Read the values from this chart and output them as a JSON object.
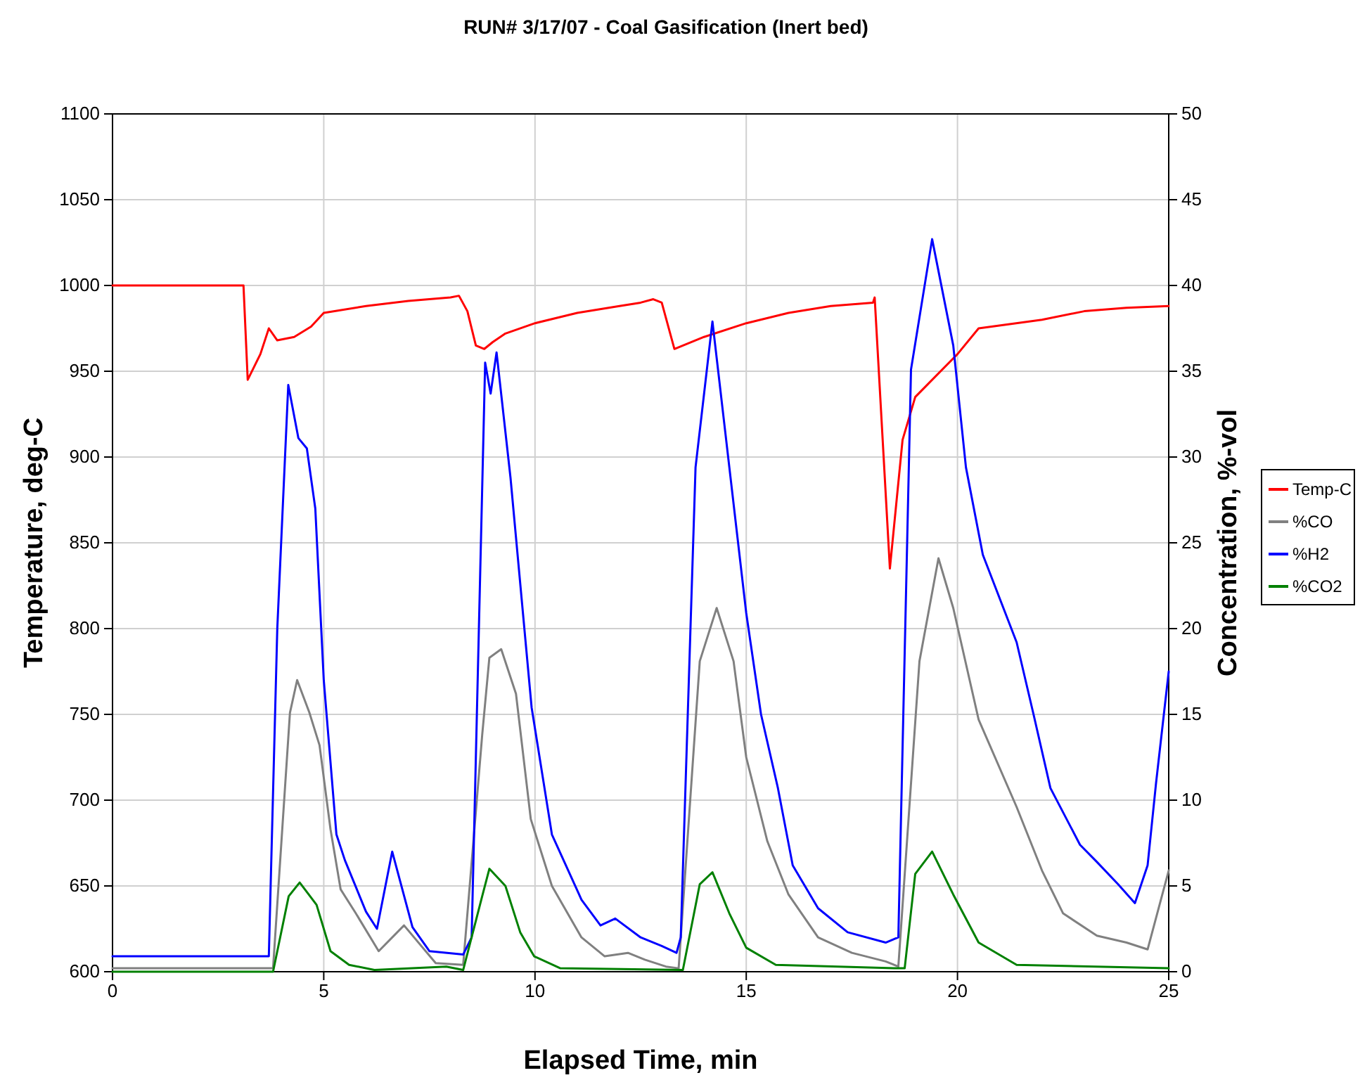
{
  "chart_data": {
    "type": "line",
    "title": "RUN# 3/17/07 - Coal Gasification (Inert bed)",
    "xlabel": "Elapsed Time, min",
    "ylabel": "Temperature, deg-C",
    "y2label": "Concentration, %-vol",
    "xlim": [
      0,
      25
    ],
    "xticks": [
      0,
      5,
      10,
      15,
      20,
      25
    ],
    "ylim": [
      600,
      1100
    ],
    "yticks": [
      600,
      650,
      700,
      750,
      800,
      850,
      900,
      950,
      1000,
      1050,
      1100
    ],
    "y2lim": [
      0,
      50
    ],
    "y2ticks": [
      0,
      5,
      10,
      15,
      20,
      25,
      30,
      35,
      40,
      45,
      50
    ],
    "grid": true,
    "legend": "right",
    "line_style": "solid",
    "marker": "none",
    "series": [
      {
        "name": "Temp-C",
        "color": "#ff0000",
        "x": [
          0,
          3.1,
          3.2,
          3.5,
          3.7,
          3.9,
          4.3,
          4.7,
          5,
          6,
          7,
          8,
          8.2,
          8.4,
          8.6,
          8.8,
          9,
          9.3,
          10,
          11,
          12,
          12.5,
          12.8,
          13,
          13.3,
          14,
          15,
          16,
          17,
          18,
          18.04,
          18.4,
          18.7,
          19,
          20,
          20.5,
          22,
          23,
          24,
          25
        ],
        "values": [
          1000,
          1000,
          945,
          960,
          975,
          968,
          970,
          976,
          984,
          988,
          991,
          993,
          994,
          985,
          965,
          963,
          967,
          972,
          978,
          984,
          988,
          990,
          992,
          990,
          963,
          970,
          978,
          984,
          988,
          990,
          993,
          835,
          910,
          935,
          960,
          975,
          980,
          985,
          987,
          988
        ]
      },
      {
        "name": "%CO",
        "color": "#808080",
        "axis": "y2",
        "x": [
          0,
          3.8,
          4.2,
          4.37,
          4.66,
          4.9,
          5.16,
          5.4,
          5.76,
          6.3,
          6.9,
          7.65,
          8.3,
          8.75,
          8.92,
          9.2,
          9.55,
          9.9,
          10.4,
          11.1,
          11.65,
          12.2,
          12.6,
          13.1,
          13.4,
          13.9,
          14.3,
          14.7,
          15,
          15.5,
          16,
          16.7,
          17.5,
          18.3,
          18.6,
          19.1,
          19.55,
          19.9,
          20.5,
          21.4,
          22,
          22.5,
          23.3,
          24,
          24.5,
          25
        ],
        "values": [
          0.2,
          0.2,
          15.1,
          17,
          15.1,
          13.2,
          8.3,
          4.8,
          3.4,
          1.2,
          2.7,
          0.5,
          0.4,
          13.8,
          18.3,
          18.8,
          16.2,
          8.9,
          5,
          2,
          0.9,
          1.1,
          0.7,
          0.3,
          0.2,
          18.1,
          21.2,
          18.1,
          12.5,
          7.6,
          4.5,
          2,
          1.1,
          0.6,
          0.3,
          18.1,
          24.1,
          21.2,
          14.7,
          9.6,
          5.9,
          3.4,
          2.1,
          1.7,
          1.3,
          5.9
        ]
      },
      {
        "name": "%H2",
        "color": "#0000ff",
        "axis": "y2",
        "x": [
          0,
          3.7,
          3.9,
          4.16,
          4.4,
          4.6,
          4.8,
          5,
          5.3,
          5.5,
          6,
          6.26,
          6.62,
          7.1,
          7.5,
          8.3,
          8.5,
          8.82,
          8.95,
          9.09,
          9.42,
          9.92,
          10.4,
          11.1,
          11.55,
          11.9,
          12.5,
          13,
          13.35,
          13.45,
          13.8,
          14.2,
          14.6,
          15,
          15.35,
          15.75,
          16.1,
          16.7,
          17.4,
          18.3,
          18.6,
          18.9,
          19.4,
          19.9,
          20.2,
          20.6,
          21.4,
          21.8,
          22.2,
          22.9,
          23.3,
          23.8,
          24.2,
          24.5,
          24.7,
          25
        ],
        "values": [
          0.9,
          0.9,
          20,
          34.2,
          31.1,
          30.5,
          27,
          17,
          8,
          6.5,
          3.5,
          2.5,
          7,
          2.6,
          1.2,
          1,
          2,
          35.5,
          33.7,
          36.1,
          28.8,
          15.4,
          8,
          4.2,
          2.7,
          3.1,
          2,
          1.5,
          1.1,
          2,
          29.4,
          37.9,
          29.4,
          20.9,
          15,
          10.7,
          6.2,
          3.7,
          2.3,
          1.7,
          2,
          35.1,
          42.7,
          36.5,
          29.4,
          24.3,
          19.2,
          15,
          10.7,
          7.4,
          6.4,
          5.1,
          4,
          6.2,
          11,
          17.5
        ]
      },
      {
        "name": "%CO2",
        "color": "#008000",
        "axis": "y2",
        "x": [
          0,
          3.8,
          4.17,
          4.43,
          4.83,
          5.16,
          5.6,
          6.2,
          7.9,
          8.3,
          8.75,
          8.92,
          9.3,
          9.65,
          9.98,
          10.6,
          13.5,
          13.9,
          14.2,
          14.6,
          15,
          15.7,
          18.5,
          18.75,
          19,
          19.4,
          19.9,
          20.5,
          21.4,
          25
        ],
        "values": [
          0,
          0,
          4.4,
          5.2,
          3.9,
          1.2,
          0.4,
          0.1,
          0.3,
          0.1,
          4.4,
          6,
          5,
          2.3,
          0.9,
          0.2,
          0.1,
          5.1,
          5.8,
          3.4,
          1.4,
          0.4,
          0.2,
          0.2,
          5.7,
          7,
          4.5,
          1.7,
          0.4,
          0.2
        ]
      }
    ]
  }
}
